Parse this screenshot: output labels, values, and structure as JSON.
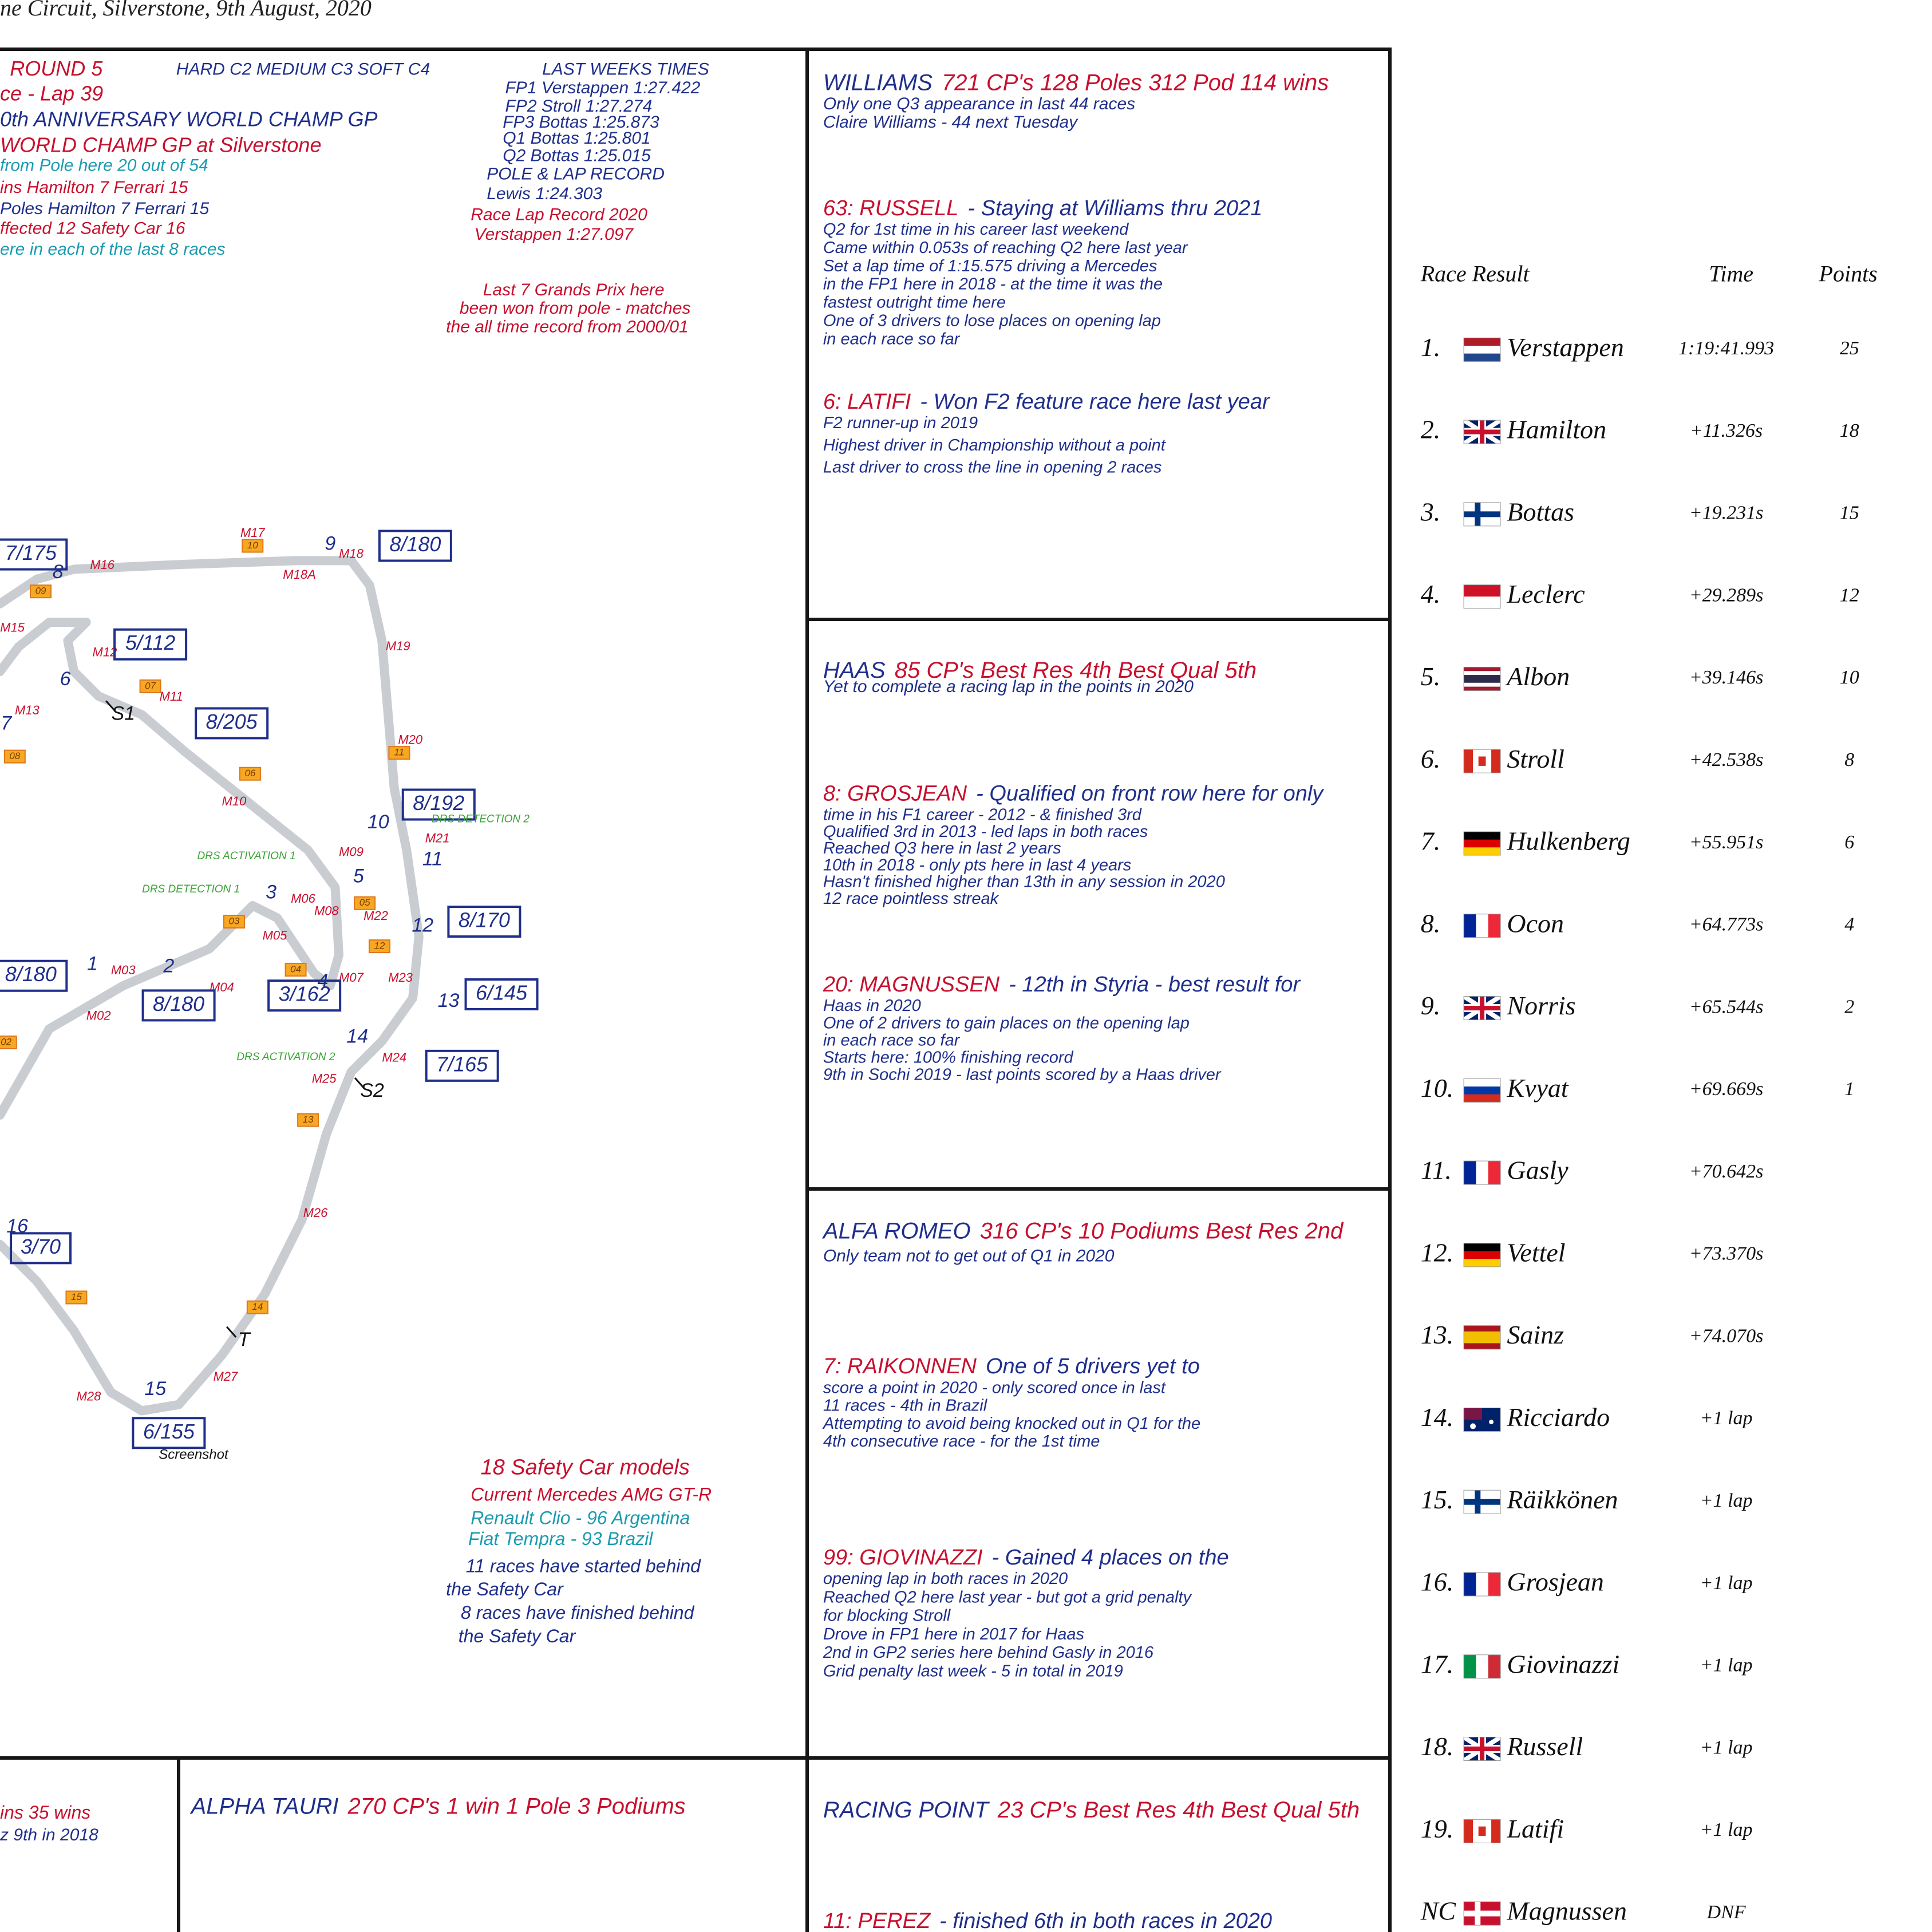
{
  "header": {
    "location": "ne Circuit, Silverstone, 9th August, 2020"
  },
  "race_notes": [
    {
      "text": "ROUND 5",
      "color": "#c8102e"
    },
    {
      "text": "ce - Lap 39",
      "color": "#c8102e"
    },
    {
      "text": "0th ANNIVERSARY WORLD CHAMP GP",
      "color": "#1f2f8c"
    },
    {
      "text": "WORLD CHAMP GP at Silverstone",
      "color": "#c8102e"
    },
    {
      "text": "from Pole here 20 out of 54",
      "color": "#1a9bb0"
    },
    {
      "text": "ins Hamilton 7 Ferrari 15",
      "color": "#c8102e"
    },
    {
      "text": "Poles Hamilton 7 Ferrari 15",
      "color": "#1f2f8c"
    },
    {
      "text": "ffected 12 Safety Car 16",
      "color": "#c8102e"
    },
    {
      "text": "ere in each of the last 8 races",
      "color": "#1a9bb0"
    },
    {
      "text": "HARD C2 MEDIUM C3 SOFT C4",
      "color": "#1f2f8c"
    },
    {
      "text": "LAST WEEKS TIMES",
      "color": "#1f2f8c"
    },
    {
      "text": "FP1 Verstappen 1:27.422",
      "color": "#1f2f8c"
    },
    {
      "text": "FP2 Stroll 1:27.274",
      "color": "#1f2f8c"
    },
    {
      "text": "FP3 Bottas 1:25.873",
      "color": "#1f2f8c"
    },
    {
      "text": "Q1 Bottas 1:25.801",
      "color": "#1f2f8c"
    },
    {
      "text": "Q2 Bottas 1:25.015",
      "color": "#1f2f8c"
    },
    {
      "text": "POLE & LAP RECORD",
      "color": "#1f2f8c"
    },
    {
      "text": "Lewis 1:24.303",
      "color": "#1f2f8c"
    },
    {
      "text": "Race Lap Record 2020",
      "color": "#c8102e"
    },
    {
      "text": "Verstappen 1:27.097",
      "color": "#c8102e"
    },
    {
      "text": "Last 7 Grands Prix here",
      "color": "#c8102e"
    },
    {
      "text": "been won from pole - matches",
      "color": "#c8102e"
    },
    {
      "text": "the all time record from 2000/01",
      "color": "#c8102e"
    }
  ],
  "safety_car": [
    {
      "text": "18 Safety Car models",
      "color": "#c8102e"
    },
    {
      "text": "Current Mercedes AMG GT-R",
      "color": "#c8102e"
    },
    {
      "text": "Renault Clio - 96 Argentina",
      "color": "#1a9bb0"
    },
    {
      "text": "Fiat Tempra - 93 Brazil",
      "color": "#1a9bb0"
    },
    {
      "text": "11 races have started behind",
      "color": "#1f2f8c"
    },
    {
      "text": "the Safety Car",
      "color": "#1f2f8c"
    },
    {
      "text": "8 races have finished behind",
      "color": "#1f2f8c"
    },
    {
      "text": "the Safety Car",
      "color": "#1f2f8c"
    }
  ],
  "track": {
    "corners": [
      1,
      2,
      3,
      4,
      5,
      6,
      7,
      8,
      9,
      10,
      11,
      12,
      13,
      14,
      15,
      16
    ],
    "markers": [
      "M02",
      "M03",
      "M04",
      "M05",
      "M06",
      "M07",
      "M08",
      "M09",
      "M10",
      "M11",
      "M12",
      "M13",
      "M15",
      "M16",
      "M17",
      "M18",
      "M18A",
      "M19",
      "M20",
      "M21",
      "M22",
      "M23",
      "M24",
      "M25",
      "M26",
      "M27",
      "M28"
    ],
    "boards": [
      "02",
      "03",
      "04",
      "05",
      "06",
      "07",
      "08",
      "09",
      "10",
      "11",
      "12",
      "13",
      "14",
      "15"
    ],
    "speeds": [
      "8/180",
      "5/112",
      "8/205",
      "8/192",
      "8/170",
      "6/145",
      "7/165",
      "6/155",
      "3/162",
      "8/180",
      "8/180",
      "7/175",
      "3/70"
    ],
    "drs": [
      "DRS DETECTION 2",
      "DRS ACTIVATION 1",
      "DRS DETECTION 1",
      "DRS ACTIVATION 2"
    ],
    "sectors": [
      "S1",
      "S2",
      "T"
    ],
    "caption": "Screenshot"
  },
  "teams": [
    {
      "name": "WILLIAMS",
      "stats": "721 CP's 128 Poles 312 Pod 114 wins",
      "notes": [
        "Only one Q3 appearance in last 44 races",
        "Claire Williams - 44 next Tuesday"
      ],
      "drivers": [
        {
          "heading": "63: RUSSELL",
          "lead": "- Staying at Williams thru 2021",
          "lines": [
            "Q2 for 1st time in his career last weekend",
            "Came within 0.053s of reaching Q2 here last year",
            "Set a lap time of 1:15.575 driving a Mercedes",
            "in the FP1 here in 2018 - at the time it was the",
            "fastest outright time here",
            "One of 3 drivers to lose places on opening lap",
            "in each race so far"
          ]
        },
        {
          "heading": "6: LATIFI",
          "lead": "- Won F2 feature race here last year",
          "lines": [
            "F2 runner-up in 2019",
            "Highest driver in Championship without a point",
            "Last driver to cross the line in opening 2 races"
          ]
        }
      ]
    },
    {
      "name": "HAAS",
      "stats": "85 CP's Best Res 4th Best Qual 5th",
      "notes": [
        "Yet to complete a racing lap in the points in 2020"
      ],
      "drivers": [
        {
          "heading": "8: GROSJEAN",
          "lead": "- Qualified on front row here for only",
          "lines": [
            "time in his F1 career - 2012 - & finished 3rd",
            "Qualified 3rd in 2013 - led laps in both races",
            "Reached Q3 here in last 2 years",
            "10th in 2018 - only pts here in last 4 years",
            "Hasn't finished higher than 13th in any session in 2020",
            "12 race pointless streak"
          ]
        },
        {
          "heading": "20: MAGNUSSEN",
          "lead": "- 12th in Styria - best result for",
          "lines": [
            "Haas in 2020",
            "One of 2 drivers to gain places on the opening lap",
            "in each race so far",
            "Starts here: 100% finishing record",
            "9th in Sochi 2019 - last points scored by a Haas driver"
          ]
        }
      ]
    },
    {
      "name": "ALFA ROMEO",
      "stats": "316 CP's 10 Podiums Best Res 2nd",
      "notes": [
        "Only team not to get out of Q1 in 2020"
      ],
      "drivers": [
        {
          "heading": "7: RAIKONNEN",
          "lead": "One of 5 drivers yet to",
          "lines": [
            "score a point in 2020 - only scored once in last",
            "11 races - 4th in Brazil",
            "Attempting to avoid being knocked out in Q1 for the",
            "4th consecutive race - for the 1st time"
          ]
        },
        {
          "heading": "99: GIOVINAZZI",
          "lead": "- Gained 4 places on the",
          "lines": [
            "opening lap in both races in 2020",
            "Reached Q2 here last year - but got a grid penalty",
            "for blocking Stroll",
            "Drove in FP1 here in 2017 for Haas",
            "2nd in GP2 series here behind Gasly in 2016",
            "Grid penalty last week - 5 in total in 2019"
          ]
        }
      ]
    },
    {
      "name": "RACING POINT",
      "stats": "23 CP's Best Res 4th Best Qual 5th",
      "notes": [],
      "drivers": [
        {
          "heading": "11: PEREZ",
          "lead": "- finished 6th in both races in 2020",
          "lines": []
        }
      ]
    },
    {
      "name": "ALPHA TAURI",
      "stats": "270 CP's 1 win 1 Pole 3 Podiums",
      "notes": [],
      "drivers": []
    }
  ],
  "fragments": [
    "ins 35 wins",
    "z 9th in 2018"
  ],
  "results": {
    "headers": [
      "Race Result",
      "Time",
      "Points"
    ],
    "rows": [
      {
        "pos": "1.",
        "driver": "Verstappen",
        "time": "1:19:41.993",
        "points": 25
      },
      {
        "pos": "2.",
        "driver": "Hamilton",
        "time": "+11.326s",
        "points": 18
      },
      {
        "pos": "3.",
        "driver": "Bottas",
        "time": "+19.231s",
        "points": 15
      },
      {
        "pos": "4.",
        "driver": "Leclerc",
        "time": "+29.289s",
        "points": 12
      },
      {
        "pos": "5.",
        "driver": "Albon",
        "time": "+39.146s",
        "points": 10
      },
      {
        "pos": "6.",
        "driver": "Stroll",
        "time": "+42.538s",
        "points": 8
      },
      {
        "pos": "7.",
        "driver": "Hulkenberg",
        "time": "+55.951s",
        "points": 6
      },
      {
        "pos": "8.",
        "driver": "Ocon",
        "time": "+64.773s",
        "points": 4
      },
      {
        "pos": "9.",
        "driver": "Norris",
        "time": "+65.544s",
        "points": 2
      },
      {
        "pos": "10.",
        "driver": "Kvyat",
        "time": "+69.669s",
        "points": 1
      },
      {
        "pos": "11.",
        "driver": "Gasly",
        "time": "+70.642s"
      },
      {
        "pos": "12.",
        "driver": "Vettel",
        "time": "+73.370s"
      },
      {
        "pos": "13.",
        "driver": "Sainz",
        "time": "+74.070s"
      },
      {
        "pos": "14.",
        "driver": "Ricciardo",
        "time": "+1 lap"
      },
      {
        "pos": "15.",
        "driver": "Räikkönen",
        "time": "+1 lap"
      },
      {
        "pos": "16.",
        "driver": "Grosjean",
        "time": "+1 lap"
      },
      {
        "pos": "17.",
        "driver": "Giovinazzi",
        "time": "+1 lap"
      },
      {
        "pos": "18.",
        "driver": "Russell",
        "time": "+1 lap"
      },
      {
        "pos": "19.",
        "driver": "Latifi",
        "time": "+1 lap"
      },
      {
        "pos": "NC",
        "driver": "Magnussen",
        "time": "DNF"
      }
    ]
  }
}
